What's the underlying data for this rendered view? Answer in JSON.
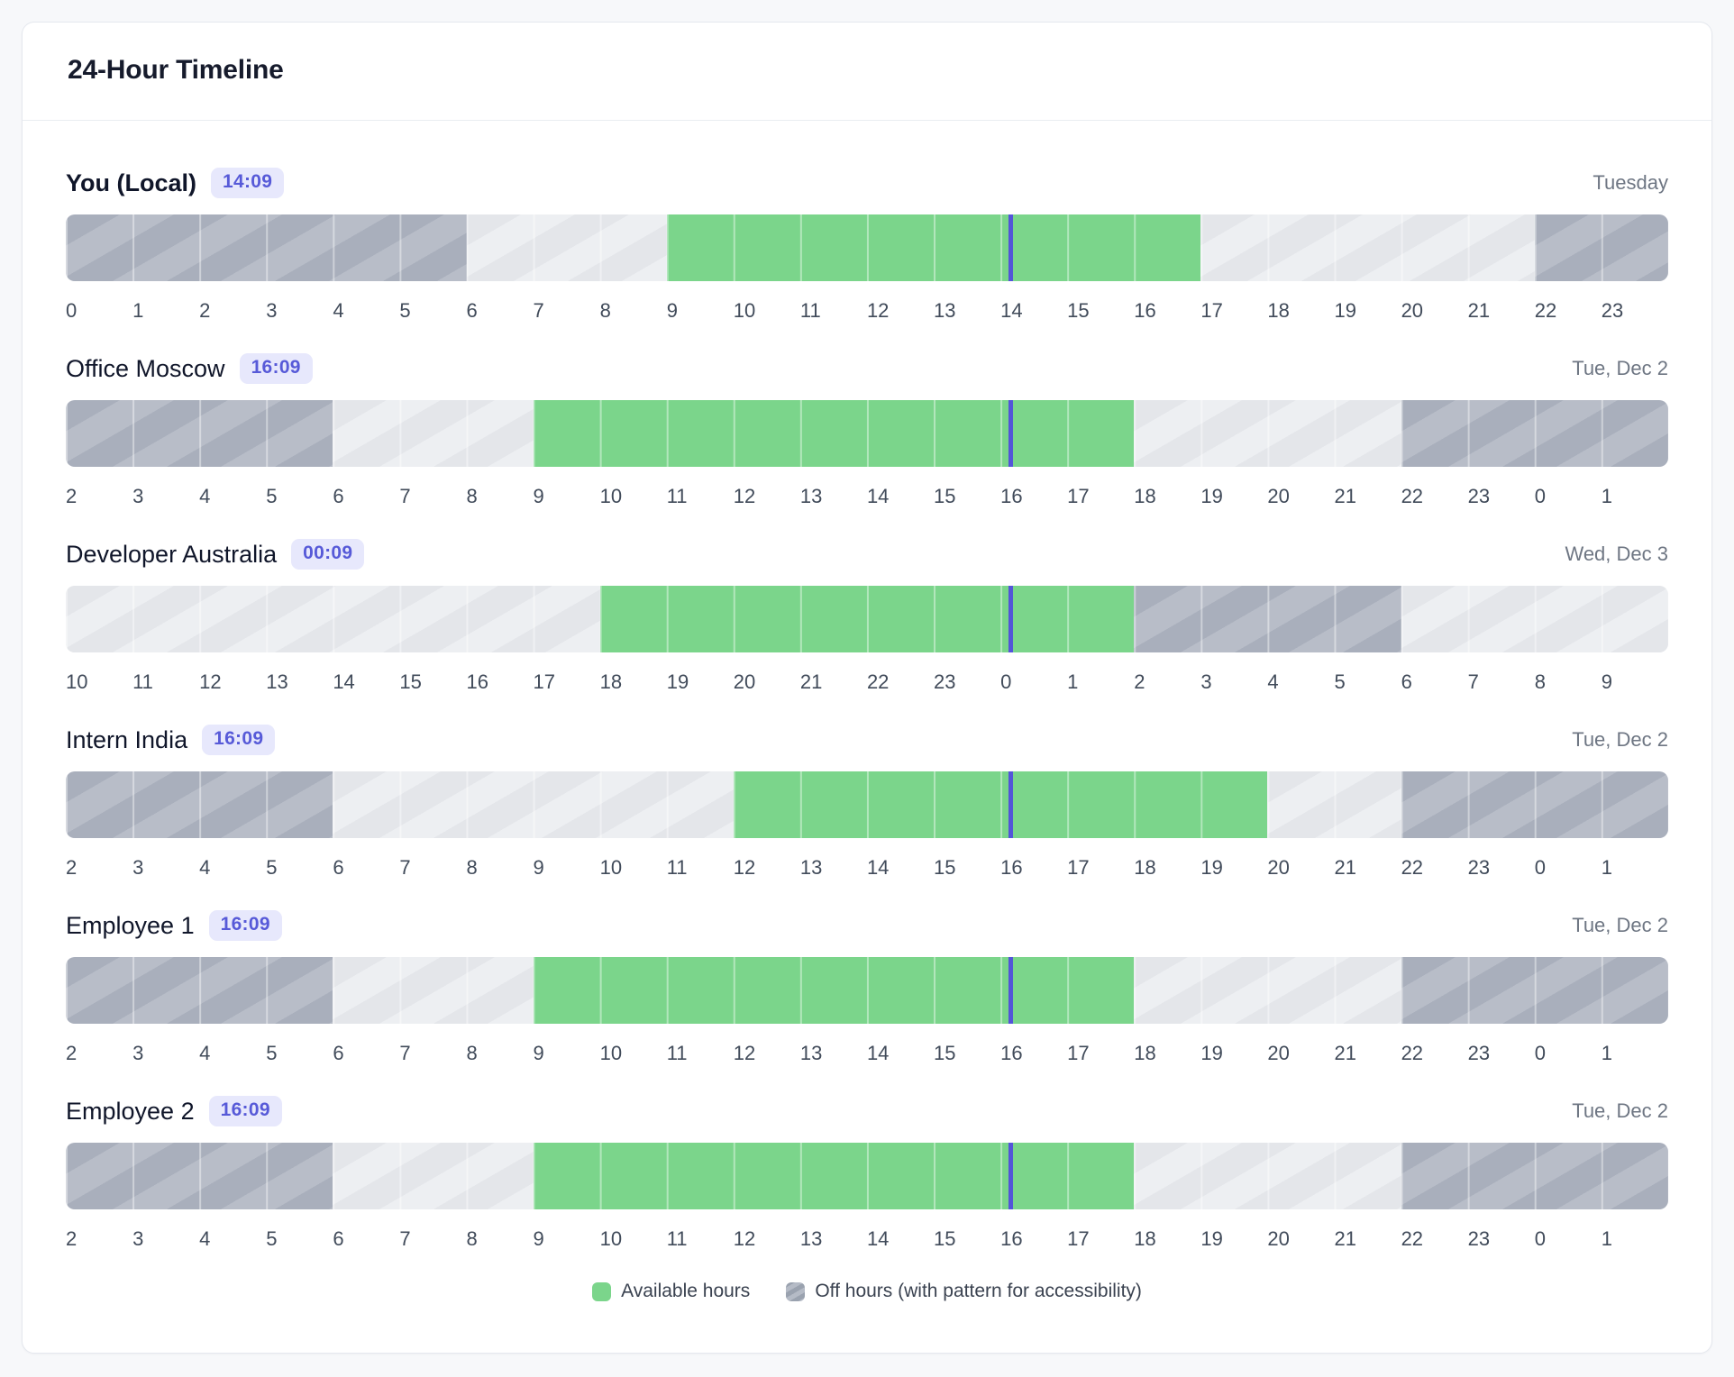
{
  "title": "24-Hour Timeline",
  "colors": {
    "available": "#7bd58b",
    "night_base": "#a9afbc",
    "night_stripe": "#b8bdc8",
    "off_base": "#e4e6ea",
    "off_stripe": "#edeff2",
    "marker": "#5355d8",
    "badge_bg": "#e7e8fc",
    "badge_text": "#575ad8"
  },
  "legend": [
    {
      "type": "available",
      "label": "Available hours"
    },
    {
      "type": "night",
      "label": "Off hours (with pattern for accessibility)"
    }
  ],
  "rows": [
    {
      "name": "You (Local)",
      "time": "14:09",
      "day": "Tuesday",
      "emphasis": true,
      "hour_labels": [
        0,
        1,
        2,
        3,
        4,
        5,
        6,
        7,
        8,
        9,
        10,
        11,
        12,
        13,
        14,
        15,
        16,
        17,
        18,
        19,
        20,
        21,
        22,
        23
      ],
      "segments": [
        {
          "type": "night",
          "from": 0,
          "to": 6
        },
        {
          "type": "off",
          "from": 6,
          "to": 9
        },
        {
          "type": "available",
          "from": 9,
          "to": 17
        },
        {
          "type": "off",
          "from": 17,
          "to": 22
        },
        {
          "type": "night",
          "from": 22,
          "to": 24
        }
      ],
      "marker_offset_hours": 14.15
    },
    {
      "name": "Office Moscow",
      "time": "16:09",
      "day": "Tue, Dec 2",
      "emphasis": false,
      "hour_labels": [
        2,
        3,
        4,
        5,
        6,
        7,
        8,
        9,
        10,
        11,
        12,
        13,
        14,
        15,
        16,
        17,
        18,
        19,
        20,
        21,
        22,
        23,
        0,
        1
      ],
      "segments": [
        {
          "type": "night",
          "from": 0,
          "to": 4
        },
        {
          "type": "off",
          "from": 4,
          "to": 7
        },
        {
          "type": "available",
          "from": 7,
          "to": 16
        },
        {
          "type": "off",
          "from": 16,
          "to": 20
        },
        {
          "type": "night",
          "from": 20,
          "to": 24
        }
      ],
      "marker_offset_hours": 14.15
    },
    {
      "name": "Developer Australia",
      "time": "00:09",
      "day": "Wed, Dec 3",
      "emphasis": false,
      "hour_labels": [
        10,
        11,
        12,
        13,
        14,
        15,
        16,
        17,
        18,
        19,
        20,
        21,
        22,
        23,
        0,
        1,
        2,
        3,
        4,
        5,
        6,
        7,
        8,
        9
      ],
      "segments": [
        {
          "type": "off",
          "from": 0,
          "to": 8
        },
        {
          "type": "available",
          "from": 8,
          "to": 16
        },
        {
          "type": "night",
          "from": 16,
          "to": 20
        },
        {
          "type": "off",
          "from": 20,
          "to": 24
        }
      ],
      "marker_offset_hours": 14.15
    },
    {
      "name": "Intern India",
      "time": "16:09",
      "day": "Tue, Dec 2",
      "emphasis": false,
      "hour_labels": [
        2,
        3,
        4,
        5,
        6,
        7,
        8,
        9,
        10,
        11,
        12,
        13,
        14,
        15,
        16,
        17,
        18,
        19,
        20,
        21,
        22,
        23,
        0,
        1
      ],
      "segments": [
        {
          "type": "night",
          "from": 0,
          "to": 4
        },
        {
          "type": "off",
          "from": 4,
          "to": 10
        },
        {
          "type": "available",
          "from": 10,
          "to": 18
        },
        {
          "type": "off",
          "from": 18,
          "to": 20
        },
        {
          "type": "night",
          "from": 20,
          "to": 24
        }
      ],
      "marker_offset_hours": 14.15
    },
    {
      "name": "Employee 1",
      "time": "16:09",
      "day": "Tue, Dec 2",
      "emphasis": false,
      "hour_labels": [
        2,
        3,
        4,
        5,
        6,
        7,
        8,
        9,
        10,
        11,
        12,
        13,
        14,
        15,
        16,
        17,
        18,
        19,
        20,
        21,
        22,
        23,
        0,
        1
      ],
      "segments": [
        {
          "type": "night",
          "from": 0,
          "to": 4
        },
        {
          "type": "off",
          "from": 4,
          "to": 7
        },
        {
          "type": "available",
          "from": 7,
          "to": 16
        },
        {
          "type": "off",
          "from": 16,
          "to": 20
        },
        {
          "type": "night",
          "from": 20,
          "to": 24
        }
      ],
      "marker_offset_hours": 14.15
    },
    {
      "name": "Employee 2",
      "time": "16:09",
      "day": "Tue, Dec 2",
      "emphasis": false,
      "hour_labels": [
        2,
        3,
        4,
        5,
        6,
        7,
        8,
        9,
        10,
        11,
        12,
        13,
        14,
        15,
        16,
        17,
        18,
        19,
        20,
        21,
        22,
        23,
        0,
        1
      ],
      "segments": [
        {
          "type": "night",
          "from": 0,
          "to": 4
        },
        {
          "type": "off",
          "from": 4,
          "to": 7
        },
        {
          "type": "available",
          "from": 7,
          "to": 16
        },
        {
          "type": "off",
          "from": 16,
          "to": 20
        },
        {
          "type": "night",
          "from": 20,
          "to": 24
        }
      ],
      "marker_offset_hours": 14.15
    }
  ]
}
